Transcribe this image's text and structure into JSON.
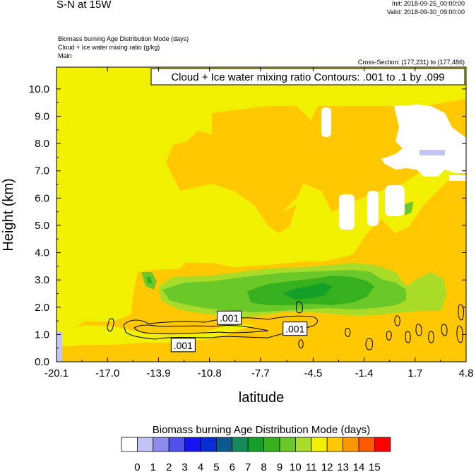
{
  "header": {
    "title": "S-N at 15W",
    "init": "Init: 2018-09-25_00:00:00",
    "valid": "Valid: 2018-09-30_09:00:00",
    "field1": "Biomass burning Age Distribution Mode   (days)",
    "field2": "Cloud + Ice water mixing ratio   (g/kg)",
    "field3": "Main",
    "cross_section": "Cross-Section: (177,231) to (177,486)"
  },
  "chart_data": {
    "type": "heatmap",
    "title": "Cloud + Ice water mixing ratio Contours: .001 to .1 by .099",
    "xlabel": "latitude",
    "ylabel": "Height (km)",
    "xlim": [
      -20.1,
      4.8
    ],
    "ylim": [
      0.0,
      10.8
    ],
    "x_ticks": [
      "-20.1",
      "-17.0",
      "-13.9",
      "-10.8",
      "-7.7",
      "-4.5",
      "-1.4",
      "1.7",
      "4.8"
    ],
    "y_ticks": [
      "0.0",
      "1.0",
      "2.0",
      "3.0",
      "4.0",
      "5.0",
      "6.0",
      "7.0",
      "8.0",
      "9.0",
      "10.0"
    ],
    "y_tick_values": [
      0,
      1,
      2,
      3,
      4,
      5,
      6,
      7,
      8,
      9,
      10
    ],
    "contour_labels": [
      {
        "text": ".001",
        "lat": -9.6,
        "h": 1.6
      },
      {
        "text": ".001",
        "lat": -5.6,
        "h": 1.2
      },
      {
        "text": ".001",
        "lat": -12.4,
        "h": 0.6
      }
    ],
    "colorbar": {
      "title": "Biomass burning Age Distribution Mode  (days)",
      "labels": [
        "0",
        "1",
        "2",
        "3",
        "4",
        "5",
        "6",
        "7",
        "8",
        "9",
        "10",
        "11",
        "12",
        "13",
        "14",
        "15"
      ],
      "colors": [
        "#ffffff",
        "#c4c4f5",
        "#8c8cf0",
        "#5050ee",
        "#1414f2",
        "#0a2ed6",
        "#0a5a8c",
        "#148c5a",
        "#14a028",
        "#37b01e",
        "#6ac828",
        "#a8dc28",
        "#f0f000",
        "#ffc800",
        "#ff9600",
        "#ff5a00",
        "#ff0000"
      ]
    }
  }
}
